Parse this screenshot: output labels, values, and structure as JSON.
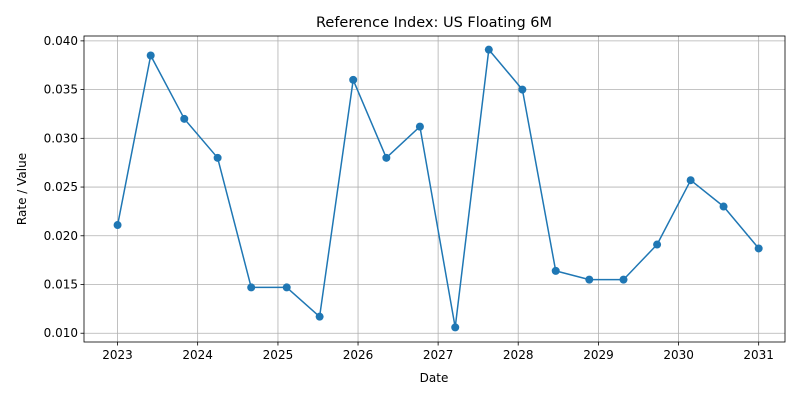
{
  "chart_data": {
    "type": "line",
    "title": "Reference Index: US Floating 6M",
    "xlabel": "Date",
    "ylabel": "Rate / Value",
    "grid": true,
    "x_axis_type": "date",
    "xlim": [
      "2022-08-01",
      "2031-05-01"
    ],
    "ylim": [
      0.0091,
      0.0405
    ],
    "x_ticks": [
      "2023-01-01",
      "2024-01-01",
      "2025-01-01",
      "2026-01-01",
      "2027-01-01",
      "2028-01-01",
      "2029-01-01",
      "2030-01-01",
      "2031-01-01"
    ],
    "x_tick_labels": [
      "2023",
      "2024",
      "2025",
      "2026",
      "2027",
      "2028",
      "2029",
      "2030",
      "2031"
    ],
    "y_ticks": [
      0.01,
      0.015,
      0.02,
      0.025,
      0.03,
      0.035,
      0.04
    ],
    "y_tick_labels": [
      "0.010",
      "0.015",
      "0.020",
      "0.025",
      "0.030",
      "0.035",
      "0.040"
    ],
    "color": "#1f77b4",
    "series": [
      {
        "x": [
          "2023-01-01",
          "2023-06-01",
          "2023-11-01",
          "2024-04-01",
          "2024-09-01",
          "2025-02-10",
          "2025-07-10",
          "2025-12-10",
          "2026-05-10",
          "2026-10-10",
          "2027-03-20",
          "2027-08-20",
          "2028-01-20",
          "2028-06-20",
          "2028-11-20",
          "2029-04-25",
          "2029-09-25",
          "2030-02-25",
          "2030-07-25",
          "2031-01-01"
        ],
        "y": [
          0.0211,
          0.0385,
          0.032,
          0.028,
          0.0147,
          0.0147,
          0.0117,
          0.036,
          0.028,
          0.0312,
          0.0106,
          0.0391,
          0.035,
          0.0164,
          0.0155,
          0.0155,
          0.0191,
          0.0257,
          0.023,
          0.0187
        ]
      }
    ]
  }
}
